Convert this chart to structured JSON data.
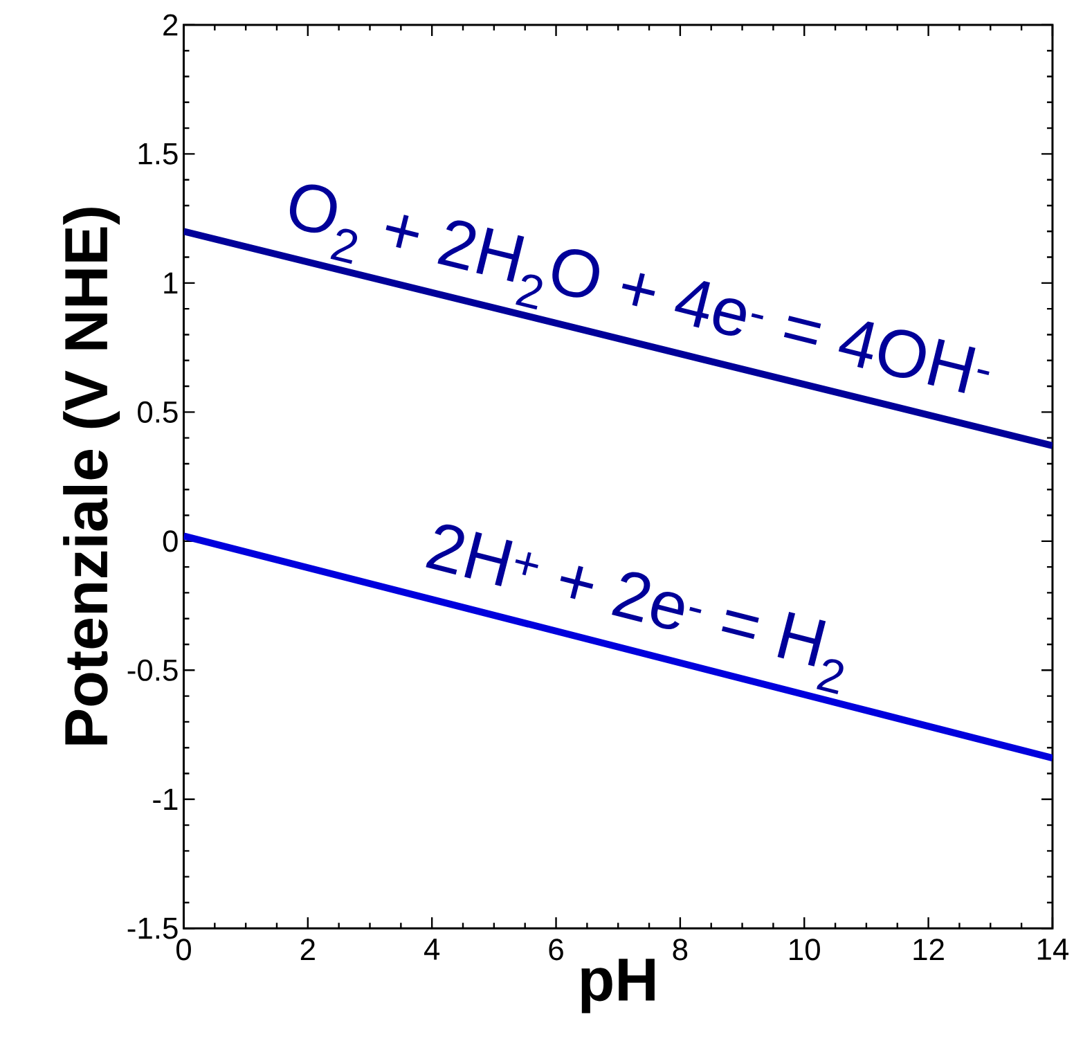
{
  "chart_data": {
    "type": "line",
    "xlabel": "pH",
    "ylabel": "Potenziale (V NHE)",
    "x": [
      0,
      14
    ],
    "series": [
      {
        "color": "#000099",
        "values": [
          1.2,
          0.37
        ]
      },
      {
        "color": "#0000dd",
        "values": [
          0.02,
          -0.84
        ]
      }
    ],
    "xlim": [
      0,
      14
    ],
    "ylim": [
      -1.5,
      2
    ],
    "xticks": [
      0,
      2,
      4,
      6,
      8,
      10,
      12,
      14
    ],
    "yticks": [
      -1.5,
      -1,
      -0.5,
      0,
      0.5,
      1,
      1.5,
      2
    ],
    "annotations": [
      "O$_{2}$ + 2H$_{2}$O + 4e$^{-}$ = 4OH$^{-}$",
      "2H$^{+}$ + 2e$^{-}$ = H$_{2}$"
    ],
    "marker": "none",
    "line_style": "solid"
  }
}
